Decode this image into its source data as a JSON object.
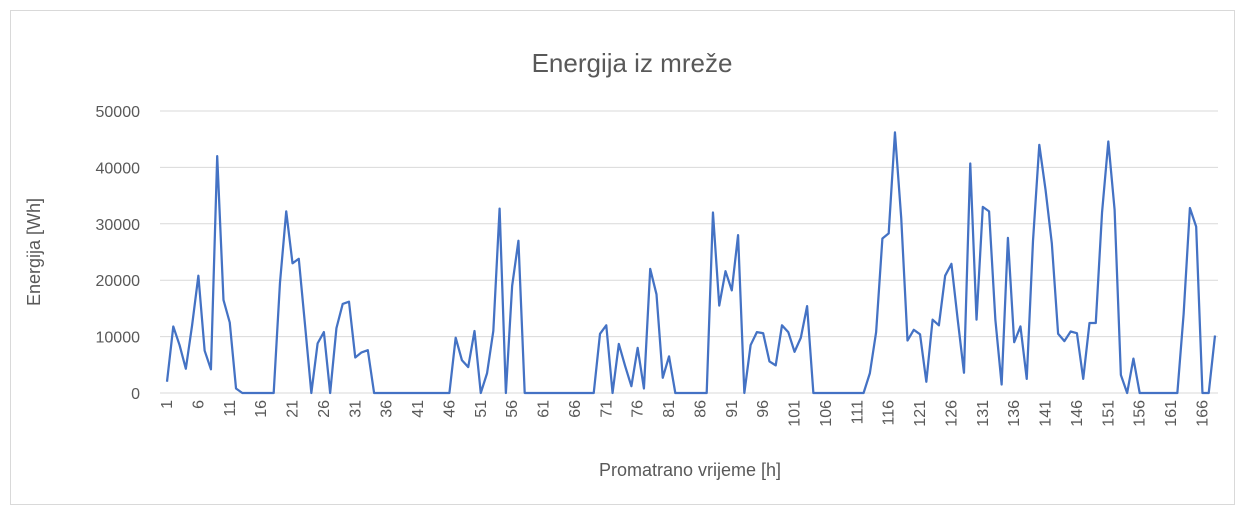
{
  "chart_data": {
    "type": "line",
    "title": "Energija iz mreže",
    "x_label": "Promatrano vrijeme [h]",
    "y_label": "Energija [Wh]",
    "categories": [
      1,
      null,
      null,
      null,
      null,
      6,
      null,
      null,
      null,
      null,
      11,
      null,
      null,
      null,
      null,
      16,
      null,
      null,
      null,
      null,
      21,
      null,
      null,
      null,
      null,
      26,
      null,
      null,
      null,
      null,
      31,
      null,
      null,
      null,
      null,
      36,
      null,
      null,
      null,
      null,
      41,
      null,
      null,
      null,
      null,
      46,
      null,
      null,
      null,
      null,
      51,
      null,
      null,
      null,
      null,
      56,
      null,
      null,
      null,
      null,
      61,
      null,
      null,
      null,
      null,
      66,
      null,
      null,
      null,
      null,
      71,
      null,
      null,
      null,
      null,
      76,
      null,
      null,
      null,
      null,
      81,
      null,
      null,
      null,
      null,
      86,
      null,
      null,
      null,
      null,
      91,
      null,
      null,
      null,
      null,
      96,
      null,
      null,
      null,
      null,
      101,
      null,
      null,
      null,
      null,
      106,
      null,
      null,
      null,
      null,
      111,
      null,
      null,
      null,
      null,
      116,
      null,
      null,
      null,
      null,
      121,
      null,
      null,
      null,
      null,
      126,
      null,
      null,
      null,
      null,
      131,
      null,
      null,
      null,
      null,
      136,
      null,
      null,
      null,
      null,
      141,
      null,
      null,
      null,
      null,
      146,
      null,
      null,
      null,
      null,
      151,
      null,
      null,
      null,
      null,
      156,
      null,
      null,
      null,
      null,
      161,
      null,
      null,
      null,
      null,
      166,
      null,
      null
    ],
    "values": [
      2000,
      11800,
      8500,
      4300,
      12000,
      20800,
      7500,
      4200,
      42000,
      16500,
      12500,
      800,
      0,
      0,
      0,
      0,
      0,
      0,
      19500,
      32200,
      23000,
      23800,
      12000,
      0,
      8800,
      10800,
      0,
      11500,
      15800,
      16200,
      6300,
      7200,
      7600,
      0,
      0,
      0,
      0,
      0,
      0,
      0,
      0,
      0,
      0,
      0,
      0,
      0,
      9800,
      5800,
      4600,
      11000,
      0,
      3500,
      11000,
      32700,
      0,
      19000,
      27000,
      0,
      0,
      0,
      0,
      0,
      0,
      0,
      0,
      0,
      0,
      0,
      0,
      10500,
      12000,
      0,
      8700,
      4800,
      1200,
      8000,
      800,
      22000,
      17500,
      2700,
      6500,
      0,
      0,
      0,
      0,
      0,
      0,
      32000,
      15500,
      21600,
      18200,
      28000,
      0,
      8500,
      10800,
      10600,
      5600,
      4900,
      12000,
      10800,
      7300,
      9800,
      15400,
      0,
      0,
      0,
      0,
      0,
      0,
      0,
      0,
      0,
      3500,
      10800,
      27400,
      28300,
      46200,
      31000,
      9300,
      11200,
      10400,
      2000,
      13000,
      12000,
      20800,
      22900,
      13000,
      3600,
      40700,
      13000,
      33000,
      32200,
      13000,
      1500,
      27500,
      9000,
      11800,
      2500,
      27000,
      44000,
      36000,
      26500,
      10500,
      9200,
      10900,
      10600,
      2500,
      12400,
      12400,
      32000,
      44600,
      32500,
      3200,
      0,
      6100,
      0,
      0,
      0,
      0,
      0,
      0,
      0,
      14000,
      32800,
      29500,
      0,
      0,
      10200
    ],
    "color": "#4472c4",
    "ylim": [
      0,
      50000
    ],
    "yticks": [
      0,
      10000,
      20000,
      30000,
      40000,
      50000
    ],
    "grid": true
  }
}
